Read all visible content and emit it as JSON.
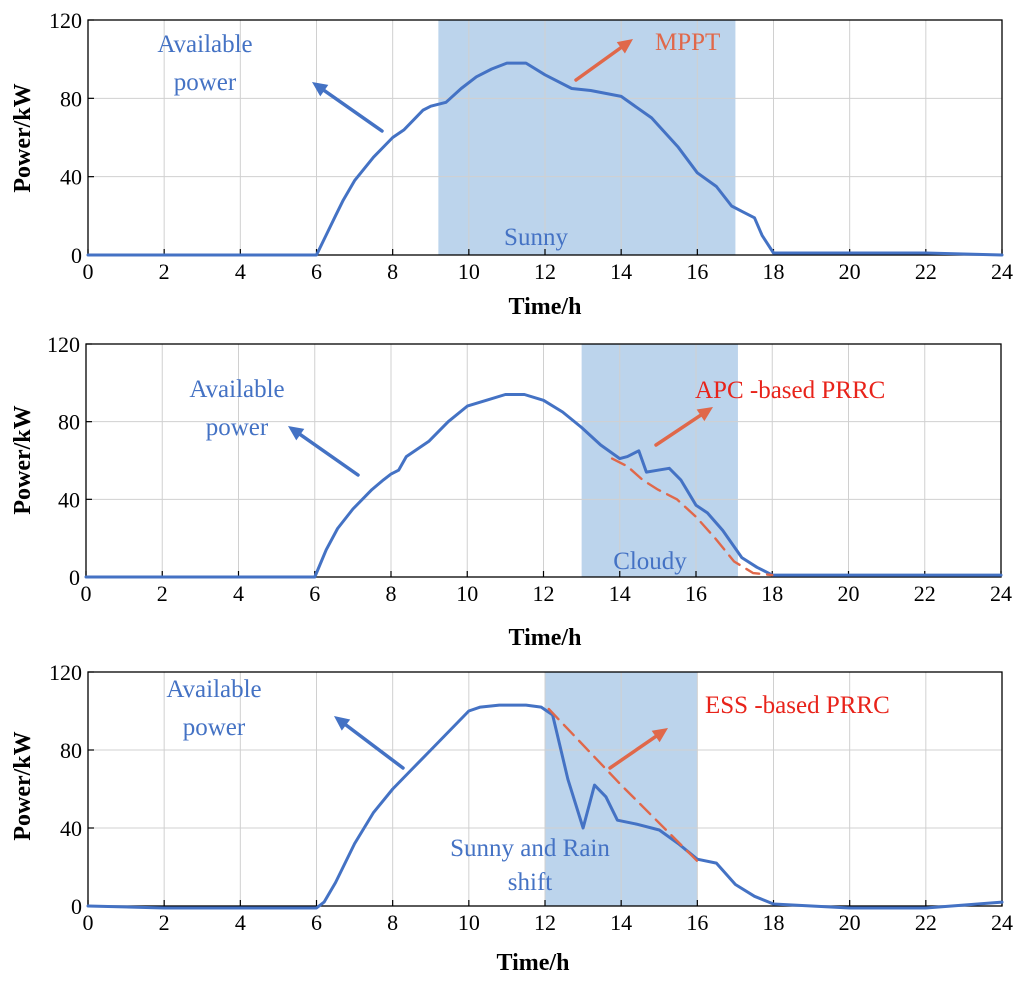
{
  "colors": {
    "available": "#4472c4",
    "prrc": "#e0684a",
    "mppt_text": "#e0684a",
    "prrc_text": "#e8231a",
    "band": "#bcd4ec",
    "grid": "#d0d0d0"
  },
  "chart_data": [
    {
      "type": "line",
      "xlabel": "Time/h",
      "ylabel": "Power/kW",
      "xlim": [
        0,
        24
      ],
      "ylim": [
        0,
        120
      ],
      "xticks": [
        0,
        2,
        4,
        6,
        8,
        10,
        12,
        14,
        16,
        18,
        20,
        22,
        24
      ],
      "yticks": [
        0,
        40,
        80,
        120
      ],
      "grid": true,
      "shaded_region": {
        "x0": 9.2,
        "x1": 17.0,
        "label": "Sunny"
      },
      "annotations": [
        {
          "text": "Available\npower",
          "color": "available"
        },
        {
          "text": "MPPT",
          "color": "mppt_text"
        }
      ],
      "series": [
        {
          "name": "Available power",
          "style": "solid",
          "x": [
            0,
            6.0,
            6.3,
            6.5,
            6.7,
            7.0,
            7.5,
            8.0,
            8.3,
            8.6,
            8.8,
            9.0,
            9.4,
            9.8,
            10.2,
            10.6,
            11.0,
            11.5,
            12.0,
            12.7,
            13.2,
            14.0,
            14.8,
            15.5,
            16.0,
            16.5,
            16.9,
            17.2,
            17.5,
            17.7,
            18.0,
            20,
            22,
            24
          ],
          "values": [
            0,
            0,
            12,
            20,
            28,
            38,
            50,
            60,
            64,
            70,
            74,
            76,
            78,
            85,
            91,
            95,
            98,
            98,
            92,
            85,
            84,
            81,
            70,
            55,
            42,
            35,
            25,
            22,
            19,
            10,
            1,
            1,
            1,
            0
          ]
        }
      ]
    },
    {
      "type": "line",
      "xlabel": "Time/h",
      "ylabel": "Power/kW",
      "xlim": [
        0,
        24
      ],
      "ylim": [
        0,
        120
      ],
      "xticks": [
        0,
        2,
        4,
        6,
        8,
        10,
        12,
        14,
        16,
        18,
        20,
        22,
        24
      ],
      "yticks": [
        0,
        40,
        80,
        120
      ],
      "grid": true,
      "shaded_region": {
        "x0": 13.0,
        "x1": 17.1,
        "label": "Cloudy"
      },
      "annotations": [
        {
          "text": "Available\npower",
          "color": "available"
        },
        {
          "text": "APC -based PRRC",
          "color": "prrc_text"
        }
      ],
      "series": [
        {
          "name": "Available power",
          "style": "solid",
          "x": [
            0,
            6.0,
            6.3,
            6.6,
            7.0,
            7.5,
            7.8,
            8.0,
            8.2,
            8.4,
            8.7,
            9.0,
            9.5,
            10.0,
            10.5,
            11.0,
            11.5,
            12.0,
            12.5,
            13.0,
            13.5,
            14.0,
            14.2,
            14.5,
            14.7,
            15.0,
            15.3,
            15.6,
            16.0,
            16.3,
            16.7,
            17.2,
            17.6,
            18.0,
            20,
            22,
            24
          ],
          "values": [
            0,
            0,
            14,
            25,
            35,
            45,
            50,
            53,
            55,
            62,
            66,
            70,
            80,
            88,
            91,
            94,
            94,
            91,
            85,
            77,
            68,
            61,
            62,
            65,
            54,
            55,
            56,
            50,
            37,
            33,
            24,
            10,
            5,
            1,
            1,
            1,
            1
          ]
        },
        {
          "name": "APC-based PRRC",
          "style": "dashed",
          "x": [
            13.8,
            14.2,
            14.6,
            15.0,
            15.5,
            16.0,
            16.5,
            17.0,
            17.5,
            18.0
          ],
          "values": [
            61,
            57,
            50,
            45,
            40,
            31,
            20,
            8,
            2,
            1
          ]
        }
      ]
    },
    {
      "type": "line",
      "xlabel": "Time/h",
      "ylabel": "Power/kW",
      "xlim": [
        0,
        24
      ],
      "ylim": [
        0,
        120
      ],
      "xticks": [
        0,
        2,
        4,
        6,
        8,
        10,
        12,
        14,
        16,
        18,
        20,
        22,
        24
      ],
      "yticks": [
        0,
        40,
        80,
        120
      ],
      "grid": true,
      "shaded_region": {
        "x0": 12.0,
        "x1": 16.0,
        "label": "Sunny and Rain\nshift"
      },
      "annotations": [
        {
          "text": "Available\npower",
          "color": "available"
        },
        {
          "text": "ESS -based PRRC",
          "color": "prrc_text"
        }
      ],
      "series": [
        {
          "name": "Available power",
          "style": "solid",
          "x": [
            0,
            2,
            4,
            6.0,
            6.2,
            6.5,
            7.0,
            7.5,
            8.0,
            8.5,
            9.0,
            9.5,
            10.0,
            10.3,
            10.8,
            11.5,
            11.9,
            12.2,
            12.6,
            13.0,
            13.3,
            13.6,
            13.9,
            14.4,
            15.0,
            15.5,
            16.0,
            16.5,
            17.0,
            17.5,
            18.0,
            20,
            22,
            24
          ],
          "values": [
            0,
            -1,
            -1,
            -1,
            2,
            12,
            32,
            48,
            60,
            70,
            80,
            90,
            100,
            102,
            103,
            103,
            102,
            98,
            65,
            40,
            62,
            56,
            44,
            42,
            39,
            32,
            24,
            22,
            11,
            5,
            1,
            -1,
            -1,
            2
          ]
        },
        {
          "name": "ESS-based PRRC",
          "style": "dashed",
          "x": [
            12.1,
            14.0,
            16.0
          ],
          "values": [
            101,
            62,
            23
          ]
        }
      ]
    }
  ]
}
